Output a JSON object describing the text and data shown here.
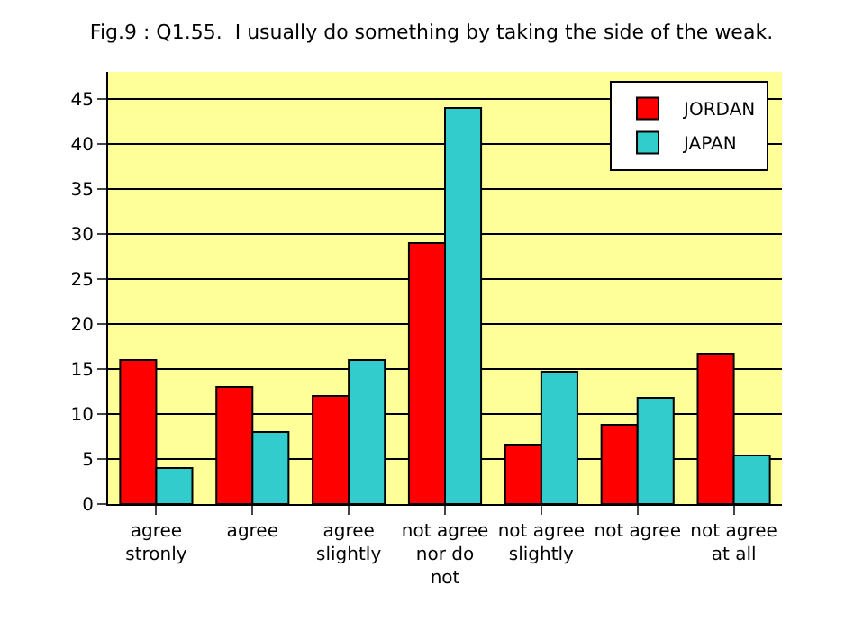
{
  "chart_data": {
    "type": "bar",
    "title": "Fig.9 : Q1.55.  I usually do something by taking the side of the weak.",
    "categories": [
      "agree\nstronly",
      "agree",
      "agree\nslightly",
      "not agree\nnor do\nnot",
      "not agree\nslightly",
      "not agree",
      "not agree\nat all"
    ],
    "series": [
      {
        "name": "JORDAN",
        "color": "#ff0000",
        "values": [
          16,
          13,
          12,
          29,
          6.6,
          8.8,
          16.7
        ]
      },
      {
        "name": "JAPAN",
        "color": "#33cccc",
        "values": [
          4,
          8,
          16,
          44,
          14.7,
          11.8,
          5.4
        ]
      }
    ],
    "ylim": [
      0,
      48
    ],
    "yticks": [
      0,
      5,
      10,
      15,
      20,
      25,
      30,
      35,
      40,
      45
    ],
    "grid": "y",
    "legend": "top right"
  }
}
